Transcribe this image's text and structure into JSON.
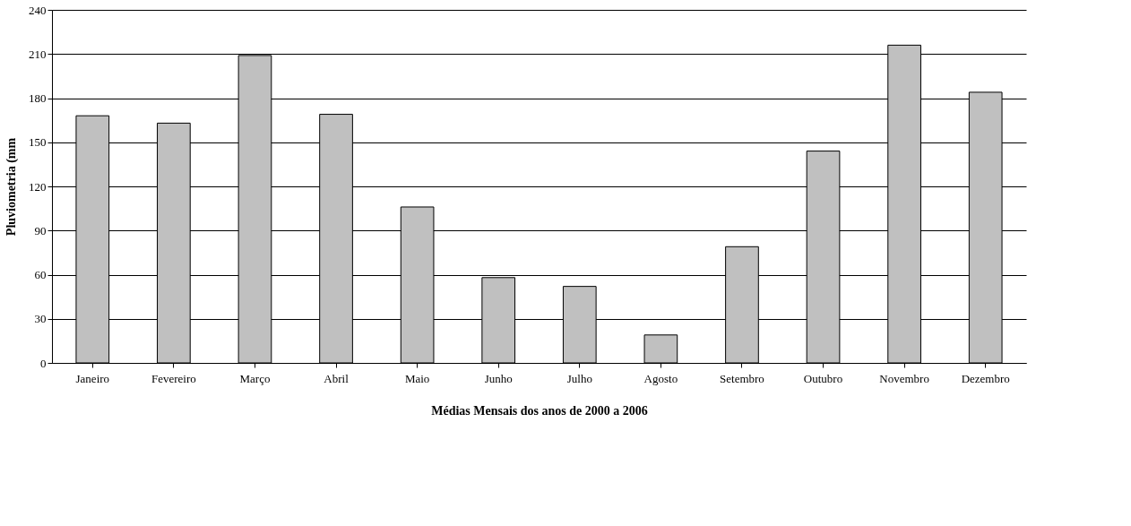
{
  "chart_data": {
    "type": "bar",
    "xlabel": "Médias Mensais dos anos de 2000 a 2006",
    "ylabel": "Pluviometria (mm",
    "categories": [
      "Janeiro",
      "Fevereiro",
      "Março",
      "Abril",
      "Maio",
      "Junho",
      "Julho",
      "Agosto",
      "Setembro",
      "Outubro",
      "Novembro",
      "Dezembro"
    ],
    "values": [
      168,
      163,
      209,
      169,
      106,
      58,
      52,
      19,
      79,
      144,
      216,
      184
    ],
    "color": "#c0c0c0",
    "ylim": [
      0,
      240
    ],
    "yticks": [
      0,
      30,
      60,
      90,
      120,
      150,
      180,
      210,
      240
    ],
    "grid": "y"
  }
}
